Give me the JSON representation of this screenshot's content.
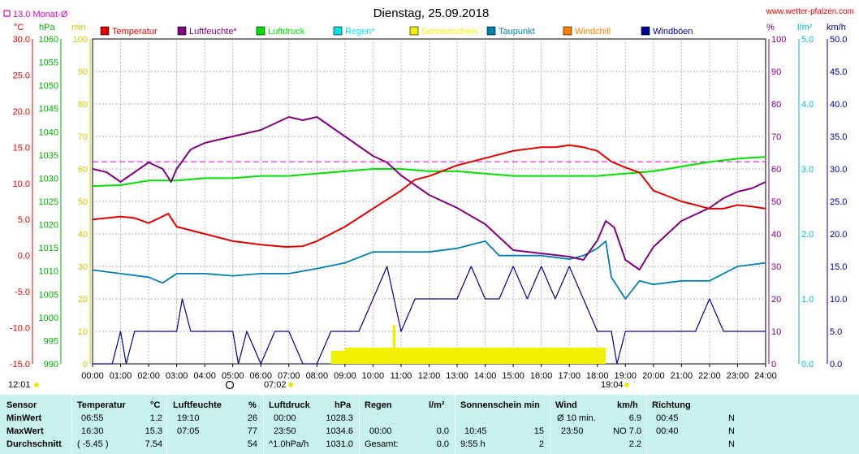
{
  "header": {
    "title": "Dienstag, 25.09.2018",
    "site": "www.wetter-pfalzen.com",
    "month_avg_label": "13.0 Monat-Ø",
    "time_left": "12:01",
    "time_mid": "07:02",
    "time_right": "19:04",
    "unit_left_c": "°C",
    "unit_left_hpa": "hPa",
    "unit_left_min": "min",
    "unit_right_pct": "%",
    "unit_right_lm2": "l/m²",
    "unit_right_kmh": "km/h"
  },
  "colors": {
    "temperature": "#e00000",
    "humidity": "#800080",
    "pressure": "#00e000",
    "rain": "#00e0e0",
    "sunshine": "#f0f000",
    "dewpoint": "#0080b0",
    "windchill": "#ff8000",
    "gusts": "#000090",
    "month_avg": "#d000d0"
  },
  "chart_data": {
    "type": "line",
    "title": "Dienstag, 25.09.2018",
    "x_range": [
      "00:00",
      "24:00"
    ],
    "x_tick_labels": [
      "00:00",
      "01:00",
      "02:00",
      "03:00",
      "04:00",
      "05:00",
      "06:00",
      "07:00",
      "08:00",
      "09:00",
      "10:00",
      "11:00",
      "12:00",
      "13:00",
      "14:00",
      "15:00",
      "16:00",
      "17:00",
      "18:00",
      "19:00",
      "20:00",
      "21:00",
      "22:00",
      "23:00",
      "24:00"
    ],
    "axes": {
      "temperature_c": {
        "range": [
          -15,
          30
        ],
        "ticks": [
          "30.0",
          "25.0",
          "20.0",
          "15.0",
          "10.0",
          "5.0",
          "0.0",
          "-5.0",
          "-10.0",
          "-15.0"
        ]
      },
      "pressure_hpa": {
        "range": [
          990,
          1060
        ],
        "ticks": [
          "1060",
          "1055",
          "1050",
          "1045",
          "1040",
          "1035",
          "1030",
          "1025",
          "1020",
          "1015",
          "1010",
          "1005",
          "1000",
          "995",
          "990"
        ]
      },
      "sunshine_min": {
        "range": [
          0,
          100
        ],
        "ticks": [
          "100",
          "90",
          "80",
          "70",
          "60",
          "50",
          "40",
          "30",
          "20",
          "10",
          "0"
        ]
      },
      "humidity_pct": {
        "range": [
          0,
          100
        ],
        "ticks": [
          "100",
          "90",
          "80",
          "70",
          "60",
          "50",
          "40",
          "30",
          "20",
          "10",
          "0"
        ]
      },
      "rain_lm2": {
        "range": [
          0,
          5
        ],
        "ticks": [
          "5.0",
          "4.0",
          "3.0",
          "2.0",
          "1.0",
          "0.0"
        ]
      },
      "wind_kmh": {
        "range": [
          0,
          50
        ],
        "ticks": [
          "50.0",
          "45.0",
          "40.0",
          "35.0",
          "30.0",
          "25.0",
          "20.0",
          "15.0",
          "10.0",
          "5.0",
          "0.0"
        ]
      }
    },
    "legend": [
      "Temperatur",
      "Luftfeuchte*",
      "Luftdruck",
      "Regen*",
      "Sonnenschein",
      "Taupunkt",
      "Windchill",
      "Windböen"
    ],
    "month_avg_temperature": 13.0,
    "series": [
      {
        "name": "Temperatur",
        "axis": "temperature_c",
        "x": [
          0,
          1,
          1.5,
          2,
          2.7,
          3,
          4,
          5,
          6,
          6.9,
          7.5,
          8,
          9,
          10,
          11,
          11.5,
          12,
          13,
          14,
          15,
          16,
          16.5,
          17,
          17.5,
          18,
          18.5,
          19,
          19.5,
          20,
          21,
          22,
          22.5,
          23,
          23.5,
          24
        ],
        "y": [
          5,
          5.4,
          5.2,
          4.5,
          5.8,
          4,
          3,
          2,
          1.5,
          1.2,
          1.3,
          2,
          4,
          6.5,
          9,
          10.5,
          11,
          12.5,
          13.5,
          14.5,
          15,
          15,
          15.3,
          15,
          14.5,
          13,
          12.2,
          11.5,
          9,
          7.5,
          6.5,
          6.5,
          7,
          6.8,
          6.5
        ]
      },
      {
        "name": "Luftfeuchte*",
        "axis": "humidity_pct",
        "x": [
          0,
          0.5,
          1,
          1.5,
          2,
          2.5,
          2.8,
          3,
          3.5,
          4,
          5,
          6,
          6.5,
          7,
          7.5,
          8,
          8.5,
          9,
          10,
          10.5,
          11,
          12,
          13,
          14,
          15,
          16,
          17,
          17.5,
          18,
          18.3,
          18.6,
          19,
          19.5,
          20,
          21,
          22,
          22.5,
          23,
          23.5,
          24
        ],
        "y": [
          60,
          59,
          56,
          59,
          62,
          60,
          56,
          60,
          66,
          68,
          70,
          72,
          74,
          76,
          75,
          76,
          73,
          70,
          64,
          62,
          58,
          52,
          48,
          43,
          35,
          34,
          33,
          32,
          38,
          44,
          42,
          32,
          29,
          36,
          44,
          48,
          51,
          53,
          54,
          56
        ]
      },
      {
        "name": "Luftdruck",
        "axis": "pressure_hpa",
        "x": [
          0,
          1,
          2,
          3,
          4,
          5,
          6,
          7,
          8,
          9,
          10,
          11,
          12,
          13,
          14,
          15,
          16,
          17,
          18,
          19,
          20,
          21,
          22,
          23,
          24
        ],
        "y": [
          1028.3,
          1028.5,
          1029.5,
          1029.5,
          1030,
          1030,
          1030.5,
          1030.5,
          1031,
          1031.5,
          1032,
          1032,
          1031.5,
          1031.5,
          1031,
          1030.5,
          1030.5,
          1030.5,
          1030.5,
          1031,
          1031.5,
          1032.5,
          1033.5,
          1034.2,
          1034.6
        ]
      },
      {
        "name": "Taupunkt",
        "axis": "temperature_c",
        "x": [
          0,
          1,
          2,
          2.5,
          3,
          4,
          5,
          6,
          7,
          8,
          9,
          10,
          11,
          12,
          13,
          14,
          14.5,
          15,
          16,
          17,
          17.5,
          18,
          18.3,
          18.5,
          19,
          19.5,
          20,
          21,
          22,
          23,
          24
        ],
        "y": [
          -2,
          -2.5,
          -3,
          -3.8,
          -2.5,
          -2.5,
          -2.8,
          -2.5,
          -2.5,
          -1.8,
          -1,
          0.5,
          0.5,
          0.5,
          1,
          2,
          0,
          0,
          0,
          -0.5,
          0,
          1,
          2,
          -3,
          -6,
          -3.5,
          -4,
          -3.5,
          -3.5,
          -1.5,
          -1
        ]
      },
      {
        "name": "Windböen",
        "axis": "wind_kmh",
        "x": [
          0,
          0.5,
          0.7,
          1,
          1.2,
          1.5,
          2,
          2.5,
          3,
          3.2,
          3.5,
          4,
          4.5,
          5,
          5.2,
          5.5,
          6,
          6.5,
          7,
          7.5,
          8,
          8.5,
          9,
          9.5,
          10,
          10.5,
          11,
          11.5,
          12,
          12.5,
          13,
          13.5,
          14,
          14.5,
          15,
          15.5,
          16,
          16.5,
          17,
          17.5,
          18,
          18.5,
          18.7,
          19,
          19.5,
          20,
          21,
          21.5,
          22,
          22.5,
          23,
          23.5,
          24
        ],
        "y": [
          0,
          0,
          0,
          5,
          0,
          5,
          5,
          5,
          5,
          10,
          5,
          5,
          5,
          5,
          0,
          5,
          0,
          5,
          5,
          0,
          0,
          5,
          5,
          5,
          10,
          15,
          5,
          10,
          10,
          10,
          10,
          15,
          10,
          10,
          15,
          10,
          15,
          10,
          15,
          10,
          5,
          5,
          0,
          5,
          5,
          5,
          5,
          5,
          10,
          5,
          5,
          5,
          5
        ]
      },
      {
        "name": "Sonnenschein",
        "axis": "sunshine_min",
        "x": [
          8.5,
          9,
          10,
          10.6,
          10.7,
          10.8,
          11,
          12,
          13,
          14,
          15,
          16,
          17,
          17.5,
          18,
          18.3
        ],
        "y": [
          4,
          5,
          5,
          5,
          12,
          5,
          5,
          5,
          5,
          5,
          5,
          5,
          5,
          5,
          5,
          0
        ]
      }
    ]
  },
  "stats": {
    "headers": {
      "sensor": "Sensor",
      "temperature": "Temperatur",
      "temperature_unit": "°C",
      "humidity": "Luftfeuchte",
      "humidity_unit": "%",
      "pressure": "Luftdruck",
      "pressure_unit": "hPa",
      "rain": "Regen",
      "rain_unit": "l/m²",
      "sun": "Sonnenschein min",
      "wind": "Wind",
      "wind_unit": "km/h",
      "direction": "Richtung"
    },
    "rows": [
      {
        "label": "MinWert",
        "t_time": "06:55",
        "t_val": "1.2",
        "h_time": "19:10",
        "h_val": "26",
        "p_time": "00:00",
        "p_val": "1028.3",
        "r_time": "",
        "r_val": "",
        "s_time": "",
        "s_val": "",
        "w_time": "Ø 10 min.",
        "w_val": "6.9",
        "d_time": "00:45",
        "d_val": "N"
      },
      {
        "label": "MaxWert",
        "t_time": "16:30",
        "t_val": "15.3",
        "h_time": "07:05",
        "h_val": "77",
        "p_time": "23:50",
        "p_val": "1034.6",
        "r_time": "00:00",
        "r_val": "0.0",
        "s_time": "10:45",
        "s_val": "15",
        "w_time": "23:50",
        "w_val": "NO 7.0",
        "d_time": "00:40",
        "d_val": "N"
      },
      {
        "label": "Durchschnitt",
        "t_time": "( -5.45 )",
        "t_val": "7.54",
        "h_time": "",
        "h_val": "54",
        "p_time": "^1.0hPa/h",
        "p_val": "1031.0",
        "r_time": "Gesamt:",
        "r_val": "0.0",
        "s_time": "9:55 h",
        "s_val": "2",
        "w_time": "",
        "w_val": "2.2",
        "d_time": "",
        "d_val": "N"
      }
    ]
  }
}
